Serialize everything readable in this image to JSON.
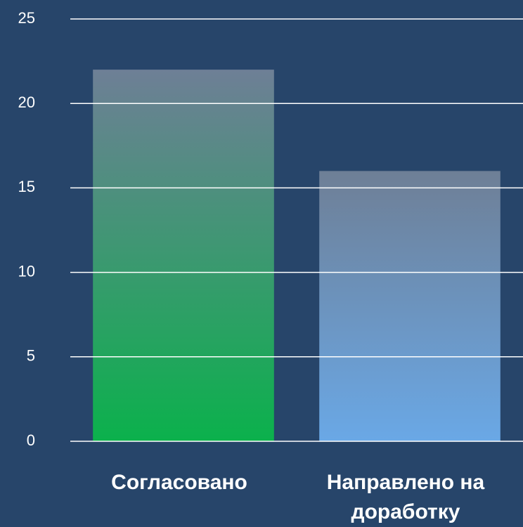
{
  "chart_data": {
    "type": "bar",
    "categories": [
      "Согласовано",
      "Направлено на доработку"
    ],
    "values": [
      22,
      16
    ],
    "colors": [
      "#0bb14c",
      "#6aa8e6"
    ],
    "ylim": [
      0,
      25
    ],
    "yticks": [
      0,
      5,
      10,
      15,
      20,
      25
    ],
    "grid": true
  }
}
